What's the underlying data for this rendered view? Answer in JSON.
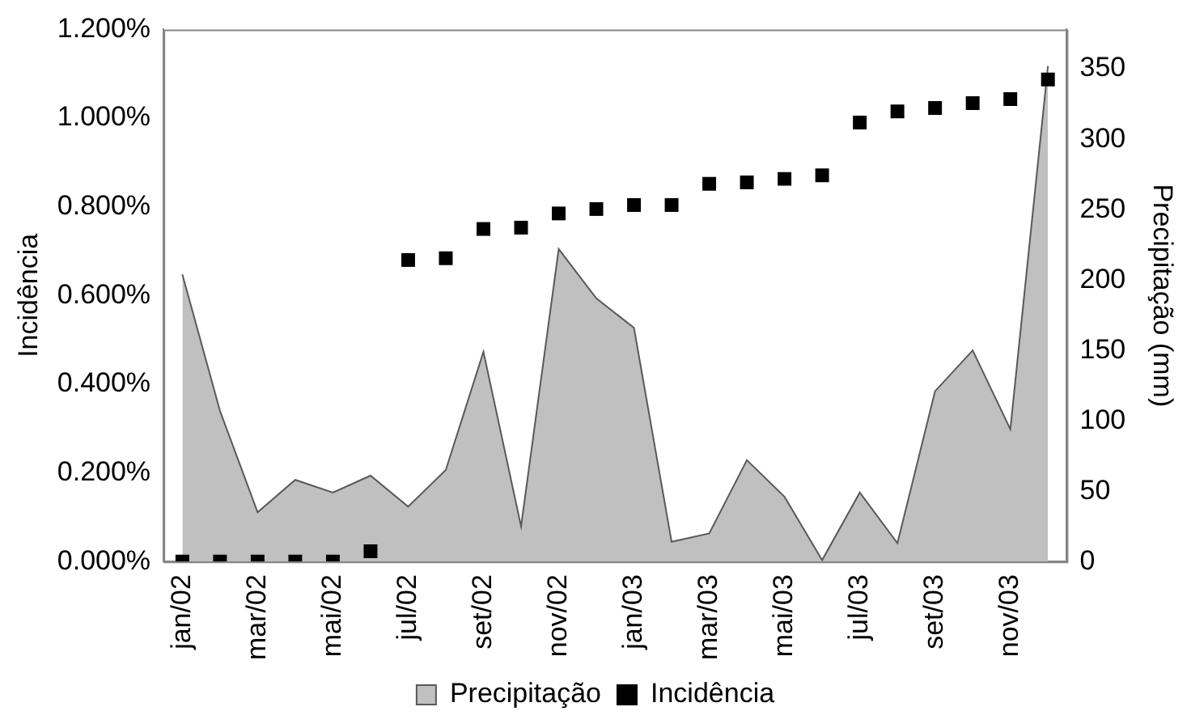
{
  "chart_data": {
    "type": "area",
    "ylabel": "Incidência",
    "y2label": "Precipitação (mm)",
    "legend": "bottom",
    "categories": [
      "jan/02",
      null,
      "mar/02",
      null,
      "mai/02",
      null,
      "jul/02",
      null,
      "set/02",
      null,
      "nov/02",
      null,
      "jan/03",
      null,
      "mar/03",
      null,
      "mai/03",
      null,
      "jul/03",
      null,
      "set/03",
      null,
      "nov/03",
      null
    ],
    "ylim": [
      0,
      1.2
    ],
    "yticks": [
      {
        "value": 0,
        "label": "0.000%"
      },
      {
        "value": 0.2,
        "label": "0.200%"
      },
      {
        "value": 0.4,
        "label": "0.400%"
      },
      {
        "value": 0.6,
        "label": "0.600%"
      },
      {
        "value": 0.8,
        "label": "0.800%"
      },
      {
        "value": 1.0,
        "label": "1.000%"
      },
      {
        "value": 1.2,
        "label": "1.200%"
      }
    ],
    "y2lim": [
      0,
      378
    ],
    "y2ticks": [
      0,
      50,
      100,
      150,
      200,
      250,
      300,
      350
    ],
    "series": [
      {
        "name": "Precipitação",
        "axis": "y2",
        "color": "#c0c0c0",
        "values": [
          204,
          107,
          35,
          58,
          49,
          61,
          39,
          65,
          149,
          25,
          222,
          187,
          166,
          14,
          20,
          72,
          46,
          1,
          49,
          13,
          121,
          150,
          94,
          352
        ]
      },
      {
        "name": "Incidência",
        "type": "scatter",
        "marker": "square",
        "axis": "y",
        "color": "#000000",
        "values": [
          0,
          0,
          0,
          0,
          0,
          0.023,
          0.68,
          0.684,
          0.75,
          0.753,
          0.785,
          0.795,
          0.804,
          0.804,
          0.852,
          0.855,
          0.863,
          0.871,
          0.99,
          1.015,
          1.023,
          1.034,
          1.043,
          1.087
        ]
      }
    ]
  }
}
